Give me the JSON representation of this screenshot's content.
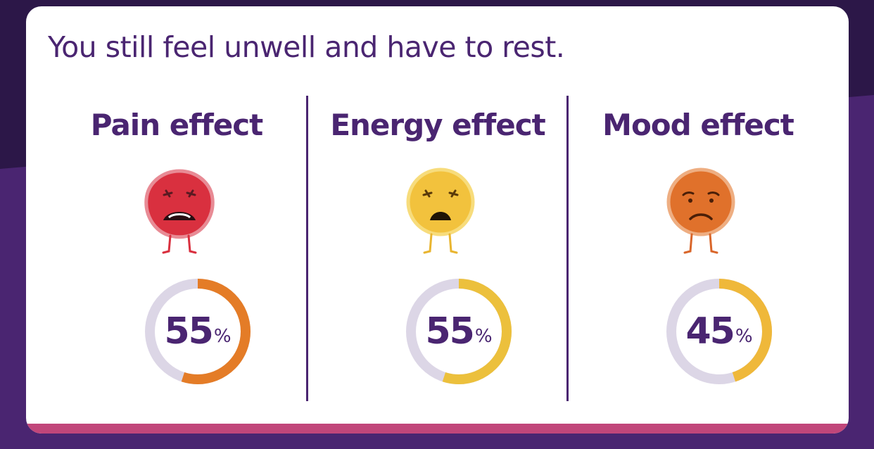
{
  "headline": "You still feel unwell and have to rest.",
  "effects": [
    {
      "title": "Pain effect",
      "percent": 55,
      "percent_label": "55",
      "percent_sign": "%",
      "face_icon": "red-pained-face-icon",
      "face_color": "#d9303f",
      "ring_color": "#e47c27"
    },
    {
      "title": "Energy effect",
      "percent": 55,
      "percent_label": "55",
      "percent_sign": "%",
      "face_icon": "yellow-sad-face-icon",
      "face_color": "#f2c23d",
      "ring_color": "#ecc03c"
    },
    {
      "title": "Mood effect",
      "percent": 45,
      "percent_label": "45",
      "percent_sign": "%",
      "face_icon": "orange-worried-face-icon",
      "face_color": "#e0712b",
      "ring_color": "#efb83a"
    }
  ],
  "colors": {
    "brand_purple": "#4a2571",
    "accent_bar": "#c1467a",
    "ring_track": "#dcd6e6"
  }
}
